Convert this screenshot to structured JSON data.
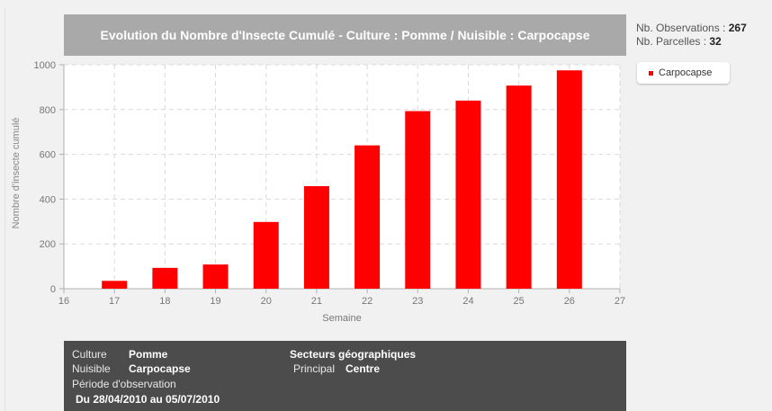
{
  "stats": {
    "observations_label": "Nb. Observations :",
    "observations_value": "267",
    "parcelles_label": "Nb. Parcelles :",
    "parcelles_value": "32"
  },
  "info": {
    "culture_label": "Culture",
    "culture_value": "Pomme",
    "nuisible_label": "Nuisible",
    "nuisible_value": "Carpocapse",
    "periode_label": "Période d'observation",
    "periode_value": "Du 28/04/2010 au 05/07/2010",
    "secteurs_title": "Secteurs géographiques",
    "principal_label": "Principal",
    "principal_value": "Centre"
  },
  "colors": {
    "bar": "#ff0000",
    "title_bg": "#a9a9a9",
    "panel_bg": "#4c4c4c"
  },
  "chart_data": {
    "type": "bar",
    "title": "Evolution du Nombre d'Insecte Cumulé - Culture : Pomme / Nuisible : Carpocapse",
    "xlabel": "Semaine",
    "ylabel": "Nombre d'insecte cumulé",
    "xlim": [
      16,
      27
    ],
    "ylim": [
      0,
      1000
    ],
    "xticks": [
      "16",
      "17",
      "18",
      "19",
      "20",
      "21",
      "22",
      "23",
      "24",
      "25",
      "26",
      "27"
    ],
    "yticks": [
      "0",
      "200",
      "400",
      "600",
      "800",
      "1000"
    ],
    "grid": true,
    "legend": "right",
    "series": [
      {
        "name": "Carpocapse",
        "x": [
          17,
          18,
          19,
          20,
          21,
          22,
          23,
          24,
          25,
          26
        ],
        "values": [
          35,
          93,
          108,
          298,
          458,
          640,
          793,
          840,
          907,
          975
        ]
      }
    ]
  }
}
